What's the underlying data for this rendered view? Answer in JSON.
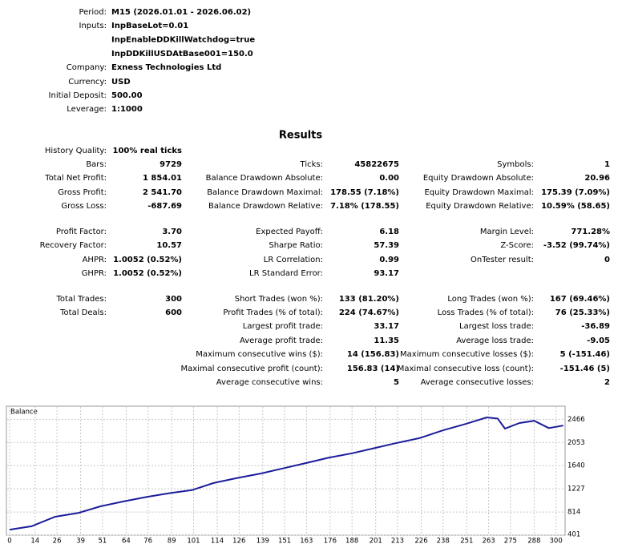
{
  "header": {
    "rows": [
      {
        "label": "Period:",
        "values": [
          "M15 (2026.01.01 - 2026.06.02)"
        ]
      },
      {
        "label": "Inputs:",
        "values": [
          "InpBaseLot=0.01",
          "InpEnableDDKillWatchdog=true",
          "InpDDKillUSDAtBase001=150.0"
        ]
      },
      {
        "label": "Company:",
        "values": [
          "Exness Technologies Ltd"
        ]
      },
      {
        "label": "Currency:",
        "values": [
          "USD"
        ]
      },
      {
        "label": "Initial Deposit:",
        "values": [
          "500.00"
        ]
      },
      {
        "label": "Leverage:",
        "values": [
          "1:1000"
        ]
      }
    ]
  },
  "results": {
    "title": "Results",
    "columns": [
      [
        {
          "label": "History Quality:",
          "value": "100% real ticks"
        },
        {
          "label": "Bars:",
          "value": "9729"
        },
        {
          "label": "Total Net Profit:",
          "value": "1 854.01"
        },
        {
          "label": "Gross Profit:",
          "value": "2 541.70"
        },
        {
          "label": "Gross Loss:",
          "value": "-687.69"
        },
        {
          "label": "Profit Factor:",
          "value": "3.70"
        },
        {
          "label": "Recovery Factor:",
          "value": "10.57"
        },
        {
          "label": "AHPR:",
          "value": "1.0052 (0.52%)"
        },
        {
          "label": "GHPR:",
          "value": "1.0052 (0.52%)"
        },
        {
          "label": "Total Trades:",
          "value": "300"
        },
        {
          "label": "Total Deals:",
          "value": "600"
        }
      ],
      [
        {
          "label": "Ticks:",
          "value": "45822675"
        },
        {
          "label": "Balance Drawdown Absolute:",
          "value": "0.00"
        },
        {
          "label": "Balance Drawdown Maximal:",
          "value": "178.55 (7.18%)"
        },
        {
          "label": "Balance Drawdown Relative:",
          "value": "7.18% (178.55)"
        },
        {
          "label": "Expected Payoff:",
          "value": "6.18"
        },
        {
          "label": "Sharpe Ratio:",
          "value": "57.39"
        },
        {
          "label": "LR Correlation:",
          "value": "0.99"
        },
        {
          "label": "LR Standard Error:",
          "value": "93.17"
        },
        {
          "label": "Short Trades (won %):",
          "value": "133 (81.20%)"
        },
        {
          "label": "Profit Trades (% of total):",
          "value": "224 (74.67%)"
        },
        {
          "label": "Largest profit trade:",
          "value": "33.17"
        },
        {
          "label": "Average profit trade:",
          "value": "11.35"
        },
        {
          "label": "Maximum consecutive wins ($):",
          "value": "14 (156.83)"
        },
        {
          "label": "Maximal consecutive profit (count):",
          "value": "156.83 (14)"
        },
        {
          "label": "Average consecutive wins:",
          "value": "5"
        }
      ],
      [
        {
          "label": "Symbols:",
          "value": "1"
        },
        {
          "label": "Equity Drawdown Absolute:",
          "value": "20.96"
        },
        {
          "label": "Equity Drawdown Maximal:",
          "value": "175.39 (7.09%)"
        },
        {
          "label": "Equity Drawdown Relative:",
          "value": "10.59% (58.65)"
        },
        {
          "label": "Margin Level:",
          "value": "771.28%"
        },
        {
          "label": "Z-Score:",
          "value": "-3.52 (99.74%)"
        },
        {
          "label": "OnTester result:",
          "value": "0"
        },
        {
          "label": "Long Trades (won %):",
          "value": "167 (69.46%)"
        },
        {
          "label": "Loss Trades (% of total):",
          "value": "76 (25.33%)"
        },
        {
          "label": "Largest loss trade:",
          "value": "-36.89"
        },
        {
          "label": "Average loss trade:",
          "value": "-9.05"
        },
        {
          "label": "Maximum consecutive losses ($):",
          "value": "5 (-151.46)"
        },
        {
          "label": "Maximal consecutive loss (count):",
          "value": "-151.46 (5)"
        },
        {
          "label": "Average consecutive losses:",
          "value": "2"
        }
      ]
    ]
  },
  "chart_data": {
    "type": "line",
    "title": "Balance",
    "x": [
      0,
      12,
      25,
      38,
      50,
      62,
      75,
      88,
      100,
      112,
      125,
      138,
      150,
      162,
      175,
      188,
      200,
      212,
      225,
      238,
      250,
      262,
      268,
      272,
      280,
      288,
      296,
      304
    ],
    "series": [
      {
        "name": "Balance",
        "color": "#1c1c9c",
        "values": [
          500,
          560,
          730,
          800,
          917,
          1000,
          1080,
          1150,
          1204,
          1330,
          1420,
          1500,
          1591,
          1680,
          1780,
          1860,
          1950,
          2040,
          2130,
          2270,
          2380,
          2500,
          2480,
          2300,
          2400,
          2440,
          2310,
          2354
        ]
      }
    ],
    "xlim": [
      0,
      305
    ],
    "xticks": [
      0,
      14,
      26,
      39,
      51,
      64,
      76,
      89,
      101,
      114,
      126,
      139,
      151,
      163,
      176,
      188,
      201,
      213,
      226,
      238,
      251,
      263,
      275,
      288,
      300
    ],
    "ylim": [
      401,
      2700
    ],
    "yticks": [
      401,
      814,
      1227,
      1640,
      2053,
      2466
    ],
    "grid": true
  }
}
